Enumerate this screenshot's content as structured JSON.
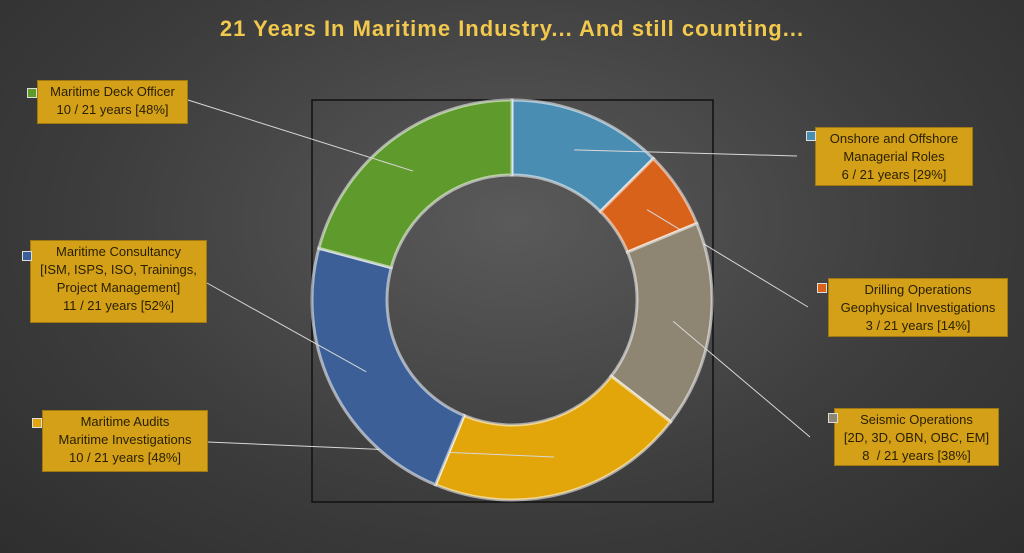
{
  "chart_data": {
    "type": "donut",
    "title": "21 Years In Maritime Industry... And still counting...",
    "categories": [
      "Onshore and Offshore\nManagerial Roles",
      "Drilling Operations\nGeophysical Investigations",
      "Seismic Operations\n[2D, 3D, OBN, OBC, EM]",
      "Maritime Audits\nMaritime Investigations",
      "Maritime Consultancy\n[ISM, ISPS, ISO, Trainings,\nProject Management]",
      "Maritime Deck Officer"
    ],
    "values": [
      6,
      3,
      8,
      10,
      11,
      10
    ],
    "value_labels": [
      "6 / 21 years [29%]",
      "3 / 21 years [14%]",
      "8  / 21 years [38%]",
      "10 / 21 years [48%]",
      "11 / 21 years [52%]",
      "10 / 21 years [48%]"
    ],
    "colors": [
      "#4a8db3",
      "#d9621a",
      "#8e8672",
      "#e2a60a",
      "#3b5f96",
      "#5e9a2c"
    ]
  }
}
